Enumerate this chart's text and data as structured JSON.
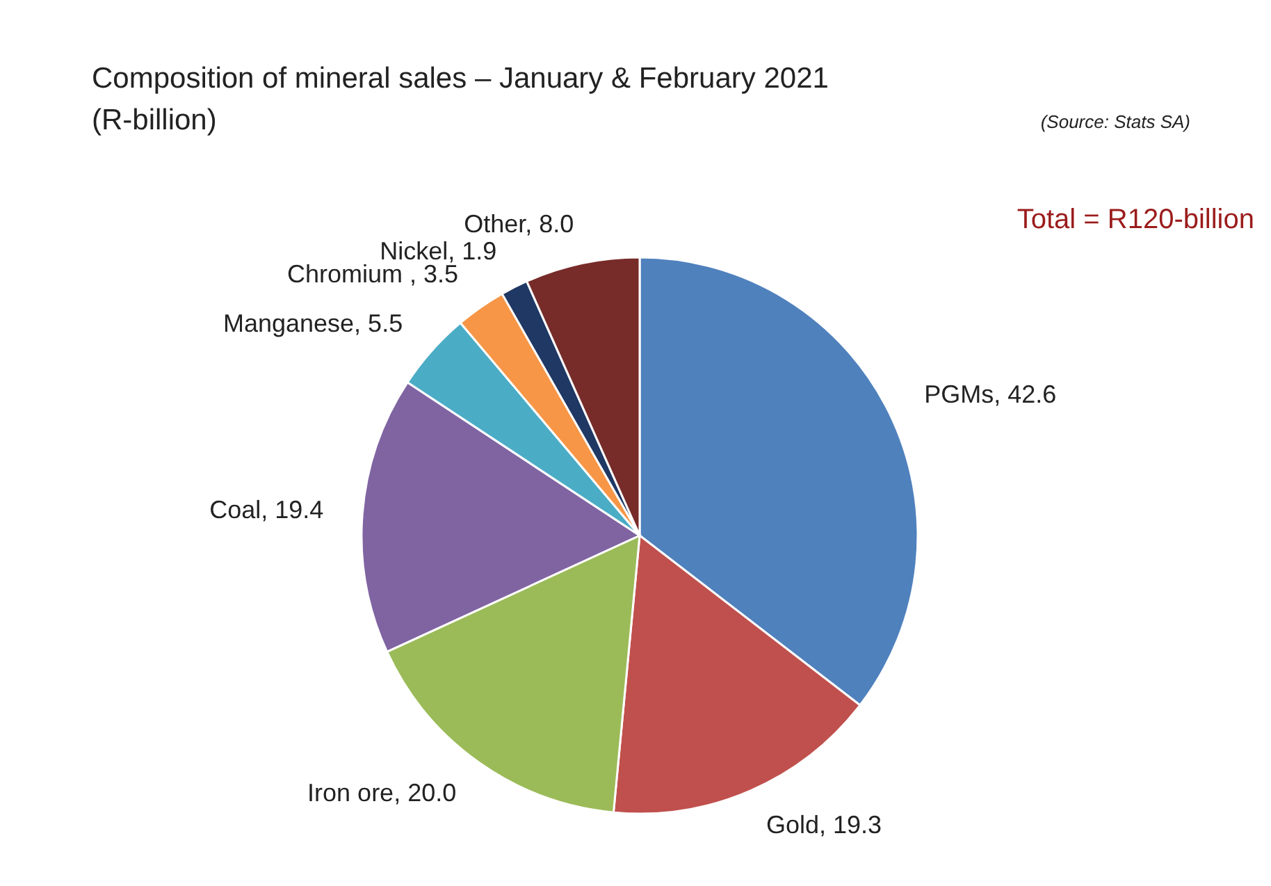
{
  "chart_data": {
    "type": "pie",
    "title": "Composition of mineral sales – January & February 2021",
    "subtitle": "(R-billion)",
    "categories": [
      "PGMs",
      "Gold",
      "Iron ore",
      "Coal",
      "Manganese",
      "Chromium ",
      "Nickel",
      "Other"
    ],
    "values": [
      42.6,
      19.3,
      20.0,
      19.4,
      5.5,
      3.5,
      1.9,
      8.0
    ],
    "colors": [
      "#4f81bd",
      "#c0504d",
      "#9bbb59",
      "#8064a2",
      "#4bacc6",
      "#f79646",
      "#1f3864",
      "#772c2a"
    ],
    "value_labels": [
      "42.6",
      "19.3",
      "20.0",
      "19.4",
      "5.5",
      "3.5",
      "1.9",
      "8.0"
    ],
    "annotations": [
      "Total = R120-billion",
      "(Source: Stats SA)"
    ]
  }
}
